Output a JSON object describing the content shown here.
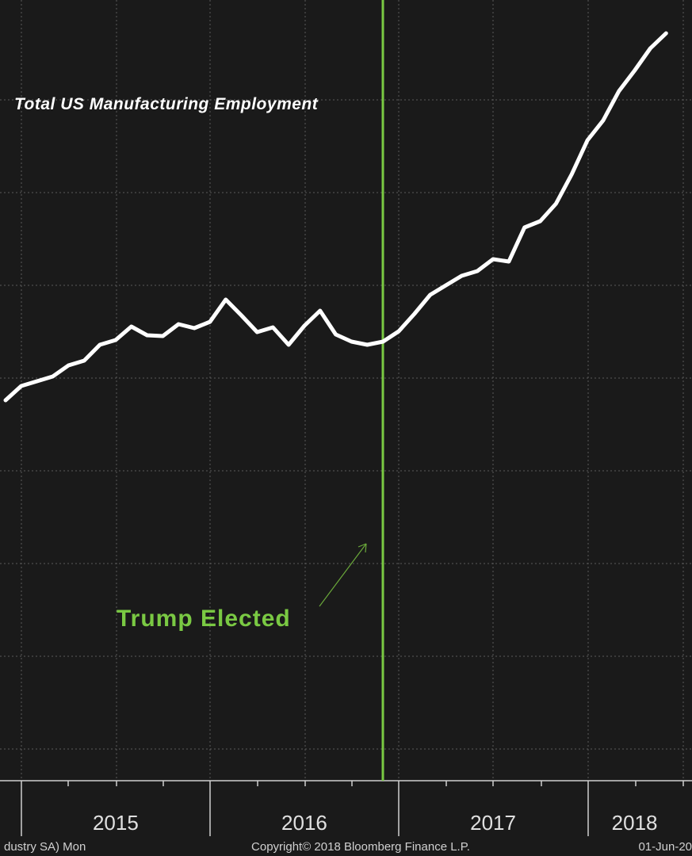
{
  "chart_data": {
    "type": "line",
    "title": "Total US Manufacturing Employment",
    "annotation": "Trump Elected",
    "categories": [
      null,
      null,
      null,
      null,
      null,
      null,
      null,
      "2015",
      null,
      null,
      null,
      null,
      null,
      null,
      null,
      null,
      null,
      null,
      null,
      "2016",
      null,
      null,
      null,
      null,
      null,
      null,
      null,
      null,
      null,
      null,
      null,
      "2017",
      null,
      null,
      null,
      null,
      null,
      null,
      null,
      null,
      "2018",
      null,
      null
    ],
    "series": [
      {
        "color": "#ffffff",
        "values": [
          480,
          498,
          504,
          510,
          524,
          530,
          550,
          556,
          573,
          562,
          561,
          576,
          571,
          579,
          607,
          587,
          566,
          572,
          550,
          574,
          593,
          563,
          554,
          550,
          554,
          567,
          589,
          613,
          625,
          637,
          643,
          658,
          655,
          698,
          706,
          728,
          765,
          808,
          833,
          870,
          896,
          924,
          943
        ]
      }
    ],
    "ylim": [
      0,
      985
    ],
    "footer": {
      "left": "dustry SA)  Mon",
      "center": "Copyright© 2018 Bloomberg Finance L.P.",
      "right": "01-Jun-20"
    }
  }
}
